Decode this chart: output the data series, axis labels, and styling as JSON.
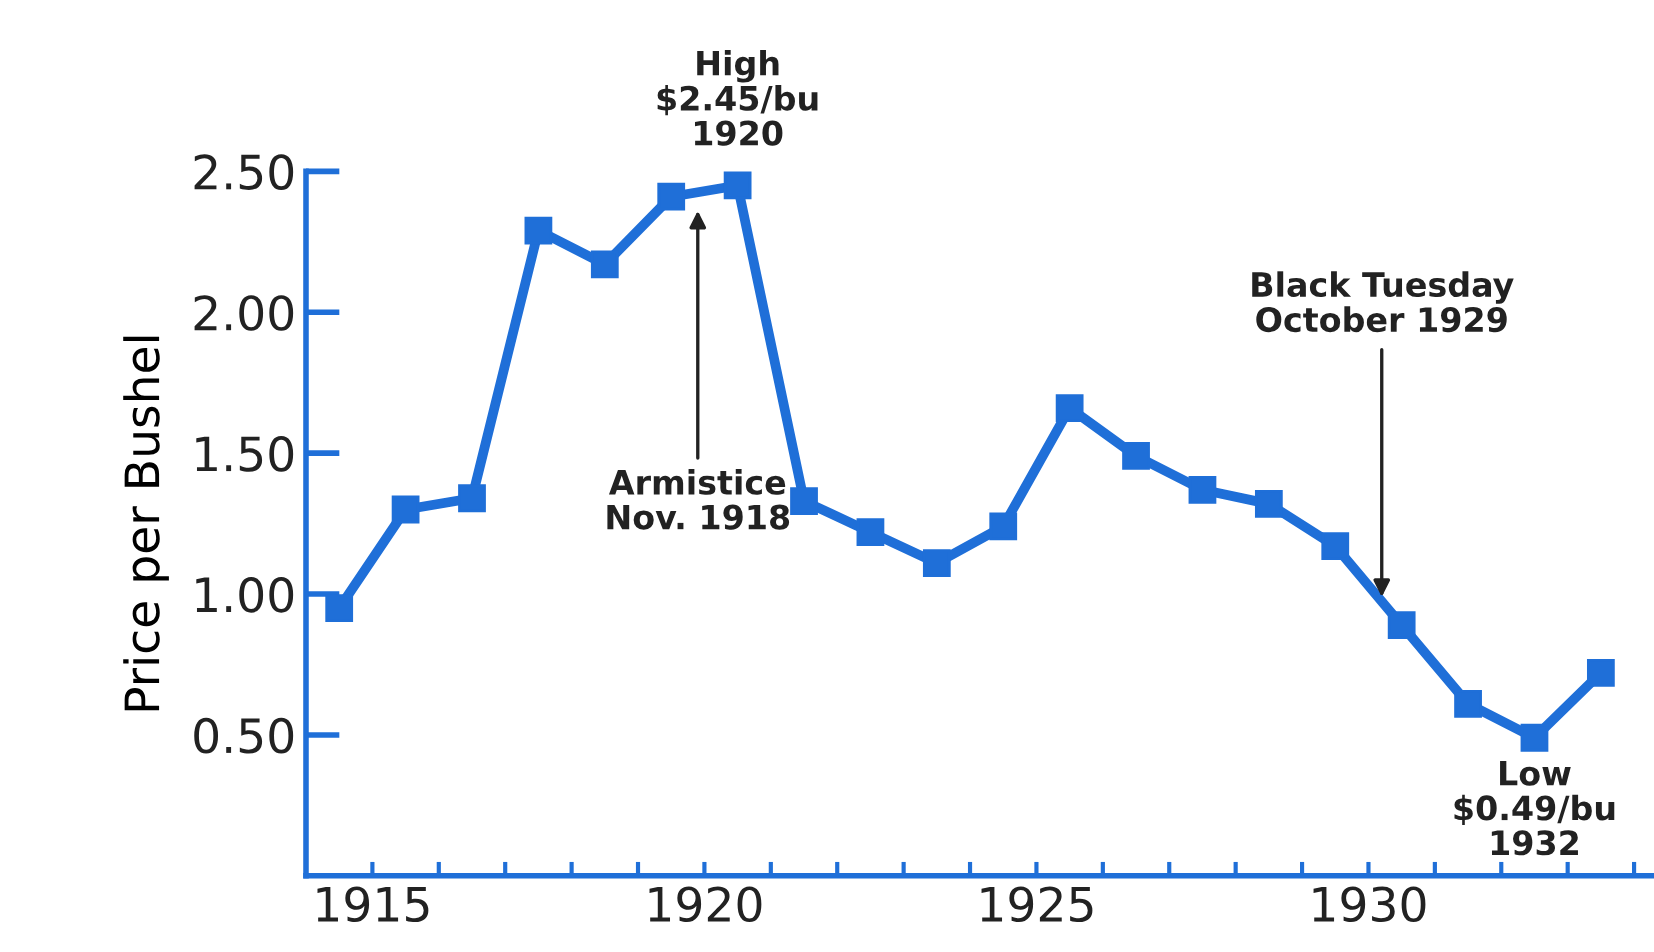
{
  "chart_data": {
    "type": "line",
    "ylabel": "Price per Bushel",
    "x": [
      1914.5,
      1915.5,
      1916.5,
      1917.5,
      1918.5,
      1919.5,
      1920.5,
      1921.5,
      1922.5,
      1923.5,
      1924.5,
      1925.5,
      1926.5,
      1927.5,
      1928.5,
      1929.5,
      1930.5,
      1931.5,
      1932.5,
      1933.5
    ],
    "series": [
      {
        "color": "#1f6fd8",
        "values": [
          0.95,
          1.3,
          1.34,
          2.29,
          2.17,
          2.41,
          2.45,
          1.33,
          1.22,
          1.11,
          1.24,
          1.66,
          1.49,
          1.37,
          1.32,
          1.17,
          0.89,
          0.61,
          0.49,
          0.72
        ]
      }
    ],
    "xlim": [
      1914,
      1934.3
    ],
    "ylim": [
      0,
      2.5
    ],
    "xticks": [
      {
        "value": 1915,
        "label": "1915"
      },
      {
        "value": 1916,
        "label": null
      },
      {
        "value": 1917,
        "label": null
      },
      {
        "value": 1918,
        "label": null
      },
      {
        "value": 1919,
        "label": null
      },
      {
        "value": 1920,
        "label": "1920"
      },
      {
        "value": 1921,
        "label": null
      },
      {
        "value": 1922,
        "label": null
      },
      {
        "value": 1923,
        "label": null
      },
      {
        "value": 1924,
        "label": null
      },
      {
        "value": 1925,
        "label": "1925"
      },
      {
        "value": 1926,
        "label": null
      },
      {
        "value": 1927,
        "label": null
      },
      {
        "value": 1928,
        "label": null
      },
      {
        "value": 1929,
        "label": null
      },
      {
        "value": 1930,
        "label": "1930"
      },
      {
        "value": 1931,
        "label": null
      },
      {
        "value": 1932,
        "label": null
      },
      {
        "value": 1933,
        "label": null
      },
      {
        "value": 1934,
        "label": null
      }
    ],
    "yticks": [
      {
        "value": 0.5,
        "label": "0.50"
      },
      {
        "value": 1.0,
        "label": "1.00"
      },
      {
        "value": 1.5,
        "label": "1.50"
      },
      {
        "value": 2.0,
        "label": "2.00"
      },
      {
        "value": 2.5,
        "label": "2.50"
      }
    ],
    "annotations": [
      {
        "text": "High\n$2.45/bu\n1920",
        "x": 1920.5,
        "y": 2.45
      },
      {
        "text": "Armistice\nNov. 1918",
        "x": 1919.9,
        "y": 2.38
      },
      {
        "text": "Black Tuesday\nOctober 1929",
        "x": 1930.2,
        "y": 0.97
      },
      {
        "text": "Low\n$0.49/bu\n1932",
        "x": 1932.5,
        "y": 0.49
      }
    ],
    "marker": "square",
    "line_style": "solid",
    "grid": false,
    "legend": false
  }
}
